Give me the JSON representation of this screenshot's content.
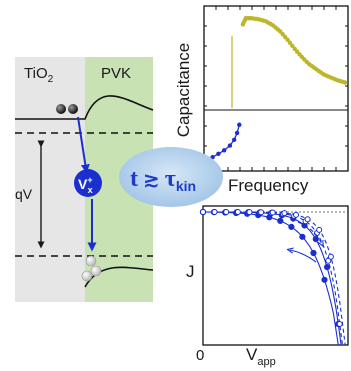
{
  "band_diagram": {
    "left_material": "TiO",
    "left_subscript": "2",
    "right_material": "PVK",
    "voltage_label": "qV",
    "defect_label": "V",
    "defect_superscript": "+",
    "defect_subscript": "x",
    "colors": {
      "tio2_region": "#e6e6e6",
      "pvk_region": "#c9e2b3",
      "defect": "#1b2fd0",
      "arrow": "#1b2fd0"
    }
  },
  "condition": {
    "lhs": "t",
    "relation": "≳",
    "rhs": "τ",
    "rhs_subscript": "kin",
    "color": "#1e3cc8",
    "bubble_color": "#9fc3e6"
  },
  "capacitance_chart": {
    "ylabel": "Capacitance",
    "xlabel": "Frequency",
    "upper_color": "#bdb52a",
    "lower_color": "#1b2fd0",
    "upper_series": [
      [
        0.27,
        0.82
      ],
      [
        0.29,
        0.88
      ],
      [
        0.33,
        0.88
      ],
      [
        0.38,
        0.87
      ],
      [
        0.43,
        0.85
      ],
      [
        0.48,
        0.81
      ],
      [
        0.53,
        0.75
      ],
      [
        0.58,
        0.67
      ],
      [
        0.63,
        0.58
      ],
      [
        0.68,
        0.5
      ],
      [
        0.73,
        0.43
      ],
      [
        0.78,
        0.38
      ],
      [
        0.83,
        0.33
      ],
      [
        0.88,
        0.3
      ],
      [
        0.93,
        0.27
      ],
      [
        0.98,
        0.25
      ]
    ],
    "lower_series": [
      [
        0.02,
        0.14
      ],
      [
        0.06,
        0.22
      ],
      [
        0.1,
        0.28
      ],
      [
        0.14,
        0.34
      ],
      [
        0.18,
        0.42
      ],
      [
        0.21,
        0.52
      ],
      [
        0.23,
        0.64
      ],
      [
        0.245,
        0.78
      ]
    ]
  },
  "jv_chart": {
    "ylabel": "J",
    "xlabel": "V",
    "xlabel_subscript": "app",
    "origin_label": "0",
    "color": "#1b2fd0"
  }
}
